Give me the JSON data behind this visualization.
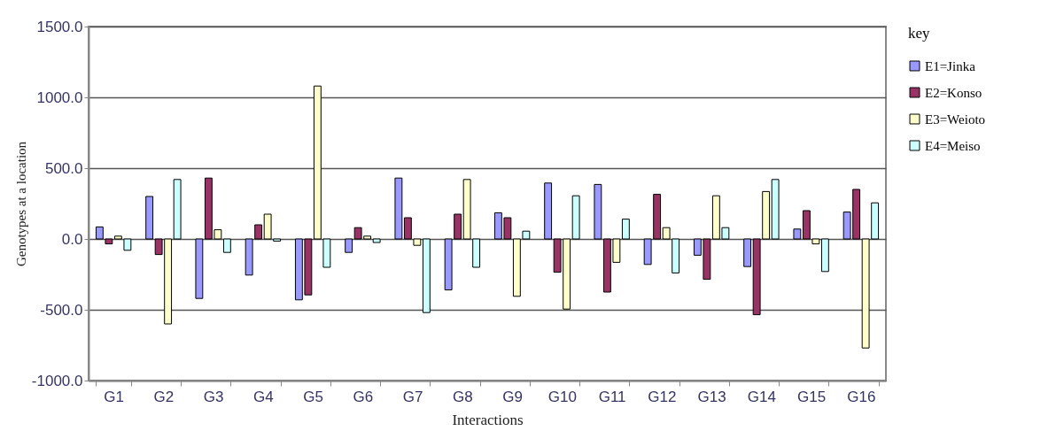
{
  "chart_data": {
    "type": "bar",
    "xlabel": "Interactions",
    "ylabel": "Genotypes at a location",
    "legend_title": "key",
    "categories": [
      "G1",
      "G2",
      "G3",
      "G4",
      "G5",
      "G6",
      "G7",
      "G8",
      "G9",
      "G10",
      "G11",
      "G12",
      "G13",
      "G14",
      "G15",
      "G16"
    ],
    "series": [
      {
        "name": "E1=Jinka",
        "color": "#9999ff",
        "values": [
          85,
          300,
          -420,
          -255,
          -430,
          -95,
          430,
          -360,
          185,
          395,
          385,
          -180,
          -115,
          -195,
          70,
          190
        ]
      },
      {
        "name": "E2=Konso",
        "color": "#993366",
        "values": [
          -35,
          -110,
          430,
          100,
          -395,
          80,
          150,
          175,
          150,
          -235,
          -375,
          315,
          -285,
          -535,
          200,
          350
        ]
      },
      {
        "name": "E3=Weioto",
        "color": "#ffffcc",
        "values": [
          20,
          -600,
          65,
          175,
          1080,
          20,
          -45,
          420,
          -405,
          -495,
          -165,
          80,
          305,
          335,
          -35,
          -770
        ]
      },
      {
        "name": "E4=Meiso",
        "color": "#ccffff",
        "values": [
          -80,
          420,
          -95,
          -15,
          -200,
          -25,
          -520,
          -200,
          55,
          305,
          140,
          -240,
          80,
          420,
          -230,
          255
        ]
      }
    ],
    "ylim": [
      -1000,
      1500
    ],
    "yticks": [
      {
        "value": -1000,
        "label": "-1000.0"
      },
      {
        "value": -500,
        "label": "-500.0"
      },
      {
        "value": 0,
        "label": "0.0"
      },
      {
        "value": 500,
        "label": "500.0"
      },
      {
        "value": 1000,
        "label": "1000.0"
      },
      {
        "value": 1500,
        "label": "1500.0"
      }
    ],
    "grid": "y",
    "legend": "right"
  }
}
